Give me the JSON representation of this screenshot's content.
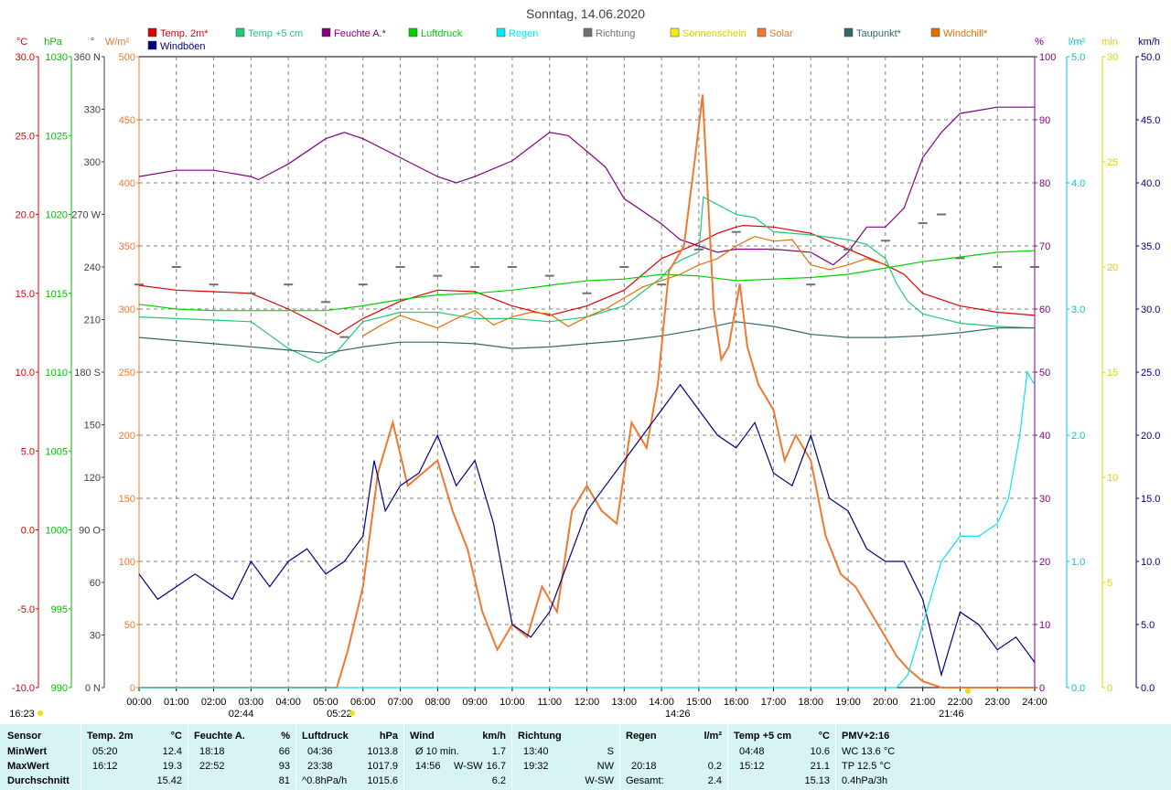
{
  "chart_data": {
    "type": "line",
    "title": "Sonntag, 14.06.2020",
    "x_ticks": [
      "00:00",
      "01:00",
      "02:00",
      "03:00",
      "04:00",
      "05:00",
      "06:00",
      "07:00",
      "08:00",
      "09:00",
      "10:00",
      "11:00",
      "12:00",
      "13:00",
      "14:00",
      "15:00",
      "16:00",
      "17:00",
      "18:00",
      "19:00",
      "20:00",
      "21:00",
      "22:00",
      "23:00",
      "24:00"
    ],
    "xlim": [
      0,
      24
    ],
    "grid": true,
    "legend_placement": "top",
    "legend": [
      {
        "label": "Temp. 2m*",
        "color": "#e00000"
      },
      {
        "label": "Temp +5 cm",
        "color": "#20c878"
      },
      {
        "label": "Feuchte A.*",
        "color": "#800080"
      },
      {
        "label": "Luftdruck",
        "color": "#00d000"
      },
      {
        "label": "Regen",
        "color": "#00e8f0"
      },
      {
        "label": "Richtung",
        "color": "#707070"
      },
      {
        "label": "Sonnenschein",
        "color": "#f0f000"
      },
      {
        "label": "Solar",
        "color": "#f07830"
      },
      {
        "label": "Taupunkt*",
        "color": "#306868"
      },
      {
        "label": "Windchill*",
        "color": "#e07000"
      },
      {
        "label": "Windböen",
        "color": "#000080"
      }
    ],
    "axes": {
      "temp": {
        "unit": "°C",
        "min": -10,
        "max": 30,
        "ticks": [
          "30.0",
          "25.0",
          "20.0",
          "15.0",
          "10.0",
          "5.0",
          "0.0",
          "-5.0",
          "-10.0"
        ],
        "color": "#e00000"
      },
      "press": {
        "unit": "hPa",
        "min": 990,
        "max": 1030,
        "ticks": [
          "1030",
          "1025",
          "1020",
          "1015",
          "1010",
          "1005",
          "1000",
          "995",
          "990"
        ],
        "color": "#00c000"
      },
      "dir": {
        "unit": "°",
        "min": 0,
        "max": 360,
        "ticks": [
          "360 N",
          "330",
          "300",
          "270 W",
          "240",
          "210",
          "180 S",
          "150",
          "120",
          "90 O",
          "60",
          "30",
          "0 N"
        ],
        "color": "#404040"
      },
      "solar": {
        "unit": "W/m²",
        "min": 0,
        "max": 500,
        "ticks": [
          "500",
          "450",
          "400",
          "350",
          "300",
          "250",
          "200",
          "150",
          "100",
          "50",
          "0"
        ],
        "color": "#f07830"
      },
      "hum": {
        "unit": "%",
        "min": 0,
        "max": 100,
        "ticks": [
          "100",
          "90",
          "80",
          "70",
          "60",
          "50",
          "40",
          "30",
          "20",
          "10",
          "0"
        ],
        "color": "#800080"
      },
      "rain": {
        "unit": "l/m²",
        "min": 0,
        "max": 5,
        "ticks": [
          "5.0",
          "4.0",
          "3.0",
          "2.0",
          "1.0",
          "0.0"
        ],
        "color": "#00c8d0"
      },
      "sun": {
        "unit": "min",
        "min": 0,
        "max": 30,
        "ticks": [
          "30",
          "25",
          "20",
          "15",
          "10",
          "5",
          "0"
        ],
        "color": "#e0d000"
      },
      "wind": {
        "unit": "km/h",
        "min": 0,
        "max": 50,
        "ticks": [
          "50.0",
          "45.0",
          "40.0",
          "35.0",
          "30.0",
          "25.0",
          "20.0",
          "15.0",
          "10.0",
          "5.0",
          "0.0"
        ],
        "color": "#000080"
      }
    },
    "series": [
      {
        "name": "Temp. 2m*",
        "axis": "temp",
        "color": "#e00000",
        "x": [
          0,
          1,
          2,
          3,
          4,
          5,
          5.33,
          6,
          7,
          8,
          9,
          10,
          11,
          12,
          13,
          14,
          15,
          15.5,
          16,
          16.2,
          17,
          18,
          19,
          20,
          20.5,
          21,
          22,
          23,
          24
        ],
        "y": [
          15.5,
          15.2,
          15.1,
          15.0,
          14.0,
          12.8,
          12.4,
          13.4,
          14.5,
          15.2,
          15.1,
          14.2,
          13.6,
          14.2,
          15.2,
          17.2,
          18.2,
          18.8,
          19.2,
          19.3,
          19.2,
          18.8,
          17.8,
          16.8,
          16.2,
          15.0,
          14.2,
          13.8,
          13.6
        ]
      },
      {
        "name": "Temp +5 cm",
        "axis": "temp",
        "color": "#20c878",
        "x": [
          0,
          1,
          2,
          3,
          4,
          4.8,
          5.3,
          6,
          7,
          8,
          9,
          10,
          11,
          12,
          13,
          14,
          14.3,
          14.6,
          15,
          15.12,
          16,
          16.5,
          17,
          18,
          19,
          19.5,
          20,
          20.3,
          20.6,
          21,
          22,
          23,
          24
        ],
        "y": [
          13.5,
          13.4,
          13.3,
          13.2,
          11.5,
          10.6,
          11.3,
          13.2,
          13.8,
          13.8,
          13.4,
          13.4,
          13.2,
          13.5,
          14.2,
          16.0,
          16.8,
          17.2,
          17.6,
          21.1,
          20.0,
          19.8,
          18.9,
          18.7,
          18.4,
          18.1,
          17.2,
          15.6,
          14.5,
          13.7,
          13.1,
          12.9,
          12.8
        ]
      },
      {
        "name": "Feuchte A.*",
        "axis": "hum",
        "color": "#800080",
        "x": [
          0,
          1,
          2,
          3,
          3.2,
          4,
          5,
          5.5,
          6,
          7,
          8,
          8.5,
          9,
          10,
          11,
          11.5,
          12,
          12.5,
          13,
          14,
          14.5,
          15,
          15.5,
          16,
          16.5,
          17,
          18,
          18.3,
          18.6,
          19,
          19.5,
          20,
          20.5,
          21,
          21.5,
          22,
          23,
          23.5,
          24
        ],
        "y": [
          81,
          82,
          82,
          81,
          80.5,
          83,
          87,
          88,
          87,
          84,
          81,
          80,
          81,
          83.5,
          88,
          87.5,
          85,
          82.5,
          77.5,
          73.5,
          71,
          70,
          69,
          69.5,
          69.5,
          69.5,
          69,
          68,
          67,
          69,
          73,
          73,
          76,
          84,
          88,
          91,
          92,
          92,
          92
        ]
      },
      {
        "name": "Luftdruck",
        "axis": "press",
        "color": "#00d000",
        "x": [
          0,
          1,
          2,
          3,
          4,
          5,
          6,
          7,
          8,
          9,
          10,
          11,
          12,
          13,
          14,
          15,
          16,
          17,
          18,
          19,
          20,
          21,
          22,
          23,
          24
        ],
        "y": [
          1014.3,
          1014.0,
          1013.9,
          1013.9,
          1013.9,
          1013.9,
          1014.2,
          1014.6,
          1014.9,
          1015.0,
          1015.2,
          1015.5,
          1015.8,
          1015.9,
          1016.2,
          1016.1,
          1015.8,
          1015.9,
          1016.0,
          1016.2,
          1016.6,
          1017.0,
          1017.3,
          1017.6,
          1017.7
        ]
      },
      {
        "name": "Taupunkt*",
        "axis": "temp",
        "color": "#306868",
        "x": [
          0,
          1,
          2,
          3,
          4,
          5,
          6,
          7,
          8,
          9,
          10,
          11,
          12,
          13,
          14,
          15,
          16,
          17,
          18,
          19,
          20,
          21,
          22,
          23,
          24
        ],
        "y": [
          12.2,
          12.0,
          11.8,
          11.6,
          11.4,
          11.2,
          11.6,
          11.9,
          11.9,
          11.8,
          11.5,
          11.6,
          11.8,
          12.0,
          12.3,
          12.7,
          13.2,
          12.9,
          12.4,
          12.2,
          12.2,
          12.3,
          12.5,
          12.8,
          12.8
        ]
      },
      {
        "name": "Windchill*",
        "axis": "temp",
        "color": "#e07000",
        "x": [
          6,
          6.5,
          7,
          7.5,
          8,
          8.5,
          9,
          9.5,
          10,
          10.5,
          11,
          11.5,
          12,
          12.5,
          13,
          13.5,
          14,
          14.5,
          15,
          15.5,
          16,
          16.5,
          17,
          17.5,
          18,
          18.5,
          19,
          19.5,
          20
        ],
        "y": [
          12.3,
          13.0,
          13.6,
          13.2,
          12.8,
          13.4,
          13.9,
          13.0,
          13.5,
          13.8,
          13.7,
          12.9,
          13.5,
          14.0,
          14.7,
          15.4,
          15.8,
          16.2,
          16.8,
          17.2,
          18.0,
          18.6,
          18.3,
          18.4,
          16.8,
          16.5,
          16.8,
          17.2,
          16.8
        ]
      },
      {
        "name": "Solar",
        "axis": "solar",
        "color": "#f07830",
        "x": [
          0,
          5.3,
          5.6,
          6,
          6.4,
          6.8,
          7.2,
          7.6,
          8,
          8.4,
          8.8,
          9.2,
          9.6,
          10,
          10.4,
          10.8,
          11.2,
          11.6,
          12,
          12.4,
          12.8,
          13.2,
          13.6,
          13.9,
          14.2,
          14.6,
          14.9,
          15.1,
          15.4,
          15.6,
          15.8,
          16.1,
          16.3,
          16.6,
          17,
          17.3,
          17.6,
          18,
          18.4,
          18.8,
          19.2,
          19.6,
          20,
          20.3,
          20.6,
          21,
          21.5,
          22,
          22.5,
          23,
          24
        ],
        "y": [
          0,
          0,
          30,
          80,
          170,
          210,
          160,
          170,
          180,
          140,
          110,
          60,
          30,
          50,
          40,
          80,
          60,
          140,
          160,
          140,
          130,
          210,
          190,
          240,
          330,
          350,
          420,
          470,
          300,
          260,
          270,
          320,
          270,
          240,
          220,
          180,
          200,
          180,
          120,
          90,
          80,
          60,
          40,
          25,
          15,
          5,
          0,
          0,
          0,
          0,
          0
        ]
      },
      {
        "name": "Windböen",
        "axis": "wind",
        "color": "#000080",
        "x": [
          0,
          0.5,
          1,
          1.5,
          2,
          2.5,
          3,
          3.5,
          4,
          4.5,
          5,
          5.5,
          6,
          6.3,
          6.6,
          7,
          7.5,
          8,
          8.5,
          9,
          9.5,
          10,
          10.5,
          11,
          11.5,
          12,
          12.5,
          13,
          13.5,
          14,
          14.5,
          15,
          15.5,
          16,
          16.5,
          17,
          17.5,
          18,
          18.5,
          19,
          19.5,
          20,
          20.5,
          21,
          21.5,
          22,
          22.5,
          23,
          23.5,
          24
        ],
        "y": [
          9,
          7,
          8,
          9,
          8,
          7,
          10,
          8,
          10,
          11,
          9,
          10,
          12,
          18,
          14,
          16,
          17,
          20,
          16,
          18,
          13,
          5,
          4,
          6,
          10,
          14,
          16,
          18,
          20,
          22,
          24,
          22,
          20,
          19,
          21,
          17,
          16,
          20,
          15,
          14,
          11,
          10,
          10,
          7,
          1,
          6,
          5,
          3,
          4,
          2
        ]
      },
      {
        "name": "Regen",
        "axis": "rain",
        "color": "#00e8f0",
        "x": [
          0,
          20.3,
          20.6,
          21,
          21.5,
          22,
          22.5,
          23,
          23.3,
          23.6,
          23.8,
          24
        ],
        "y": [
          0,
          0,
          0.1,
          0.5,
          1.0,
          1.2,
          1.2,
          1.3,
          1.5,
          2.0,
          2.5,
          2.4
        ]
      },
      {
        "name": "Richtung",
        "axis": "dir",
        "color": "#707070",
        "x": [
          0,
          1,
          2,
          3,
          4,
          5,
          5.5,
          6,
          7,
          8,
          9,
          10,
          11,
          12,
          13,
          14,
          15,
          16,
          17,
          18,
          19,
          20,
          21,
          21.5,
          22,
          23,
          24
        ],
        "y": [
          230,
          240,
          230,
          225,
          230,
          220,
          200,
          230,
          240,
          235,
          240,
          240,
          235,
          225,
          240,
          230,
          250,
          260,
          250,
          230,
          250,
          255,
          265,
          270,
          245,
          240,
          240
        ]
      }
    ],
    "markers": {
      "sunrise": "05:22",
      "sunset": "21:46",
      "noon": "14:26",
      "moonrise": "02:44",
      "moonset": "16:23"
    }
  },
  "stats": {
    "sensor_header": "Sensor",
    "row_labels": [
      "MinWert",
      "MaxWert",
      "Durchschnitt"
    ],
    "temp": {
      "header": "Temp. 2m",
      "unit": "°C",
      "min_time": "05:20",
      "min_val": "12.4",
      "max_time": "16:12",
      "max_val": "19.3",
      "avg": "15.42"
    },
    "hum": {
      "header": "Feuchte A.",
      "unit": "%",
      "min_time": "18:18",
      "min_val": "66",
      "max_time": "22:52",
      "max_val": "93",
      "avg": "81"
    },
    "press": {
      "header": "Luftdruck",
      "unit": "hPa",
      "min_time": "04:36",
      "min_val": "1013.8",
      "max_time": "23:38",
      "max_val": "1017.9",
      "trend": "^0.8hPa/h",
      "avg": "1015.6"
    },
    "wind": {
      "header": "Wind",
      "unit": "km/h",
      "r1_label": "Ø 10 min.",
      "r1_val": "1.7",
      "r2_time": "14:56",
      "r2_dir": "W-SW",
      "r2_val": "16.7",
      "avg": "6.2"
    },
    "dir": {
      "header": "Richtung",
      "r1_time": "13:40",
      "r1_val": "S",
      "r2_time": "19:32",
      "r2_val": "NW",
      "avg": "W-SW"
    },
    "rain": {
      "header": "Regen",
      "unit": "l/m²",
      "r2_time": "20:18",
      "r1_val": "0.2",
      "total_label": "Gesamt:",
      "total_val": "2.4"
    },
    "t5": {
      "header": "Temp +5 cm",
      "unit": "°C",
      "min_time": "04:48",
      "min_val": "10.6",
      "max_time": "15:12",
      "max_val": "21.1",
      "avg": "15.13"
    },
    "pmv": {
      "header": "PMV+2:16",
      "wc": "WC 13.6 °C",
      "tp": "TP 12.5 °C",
      "trend": "0.4hPa/3h"
    }
  }
}
